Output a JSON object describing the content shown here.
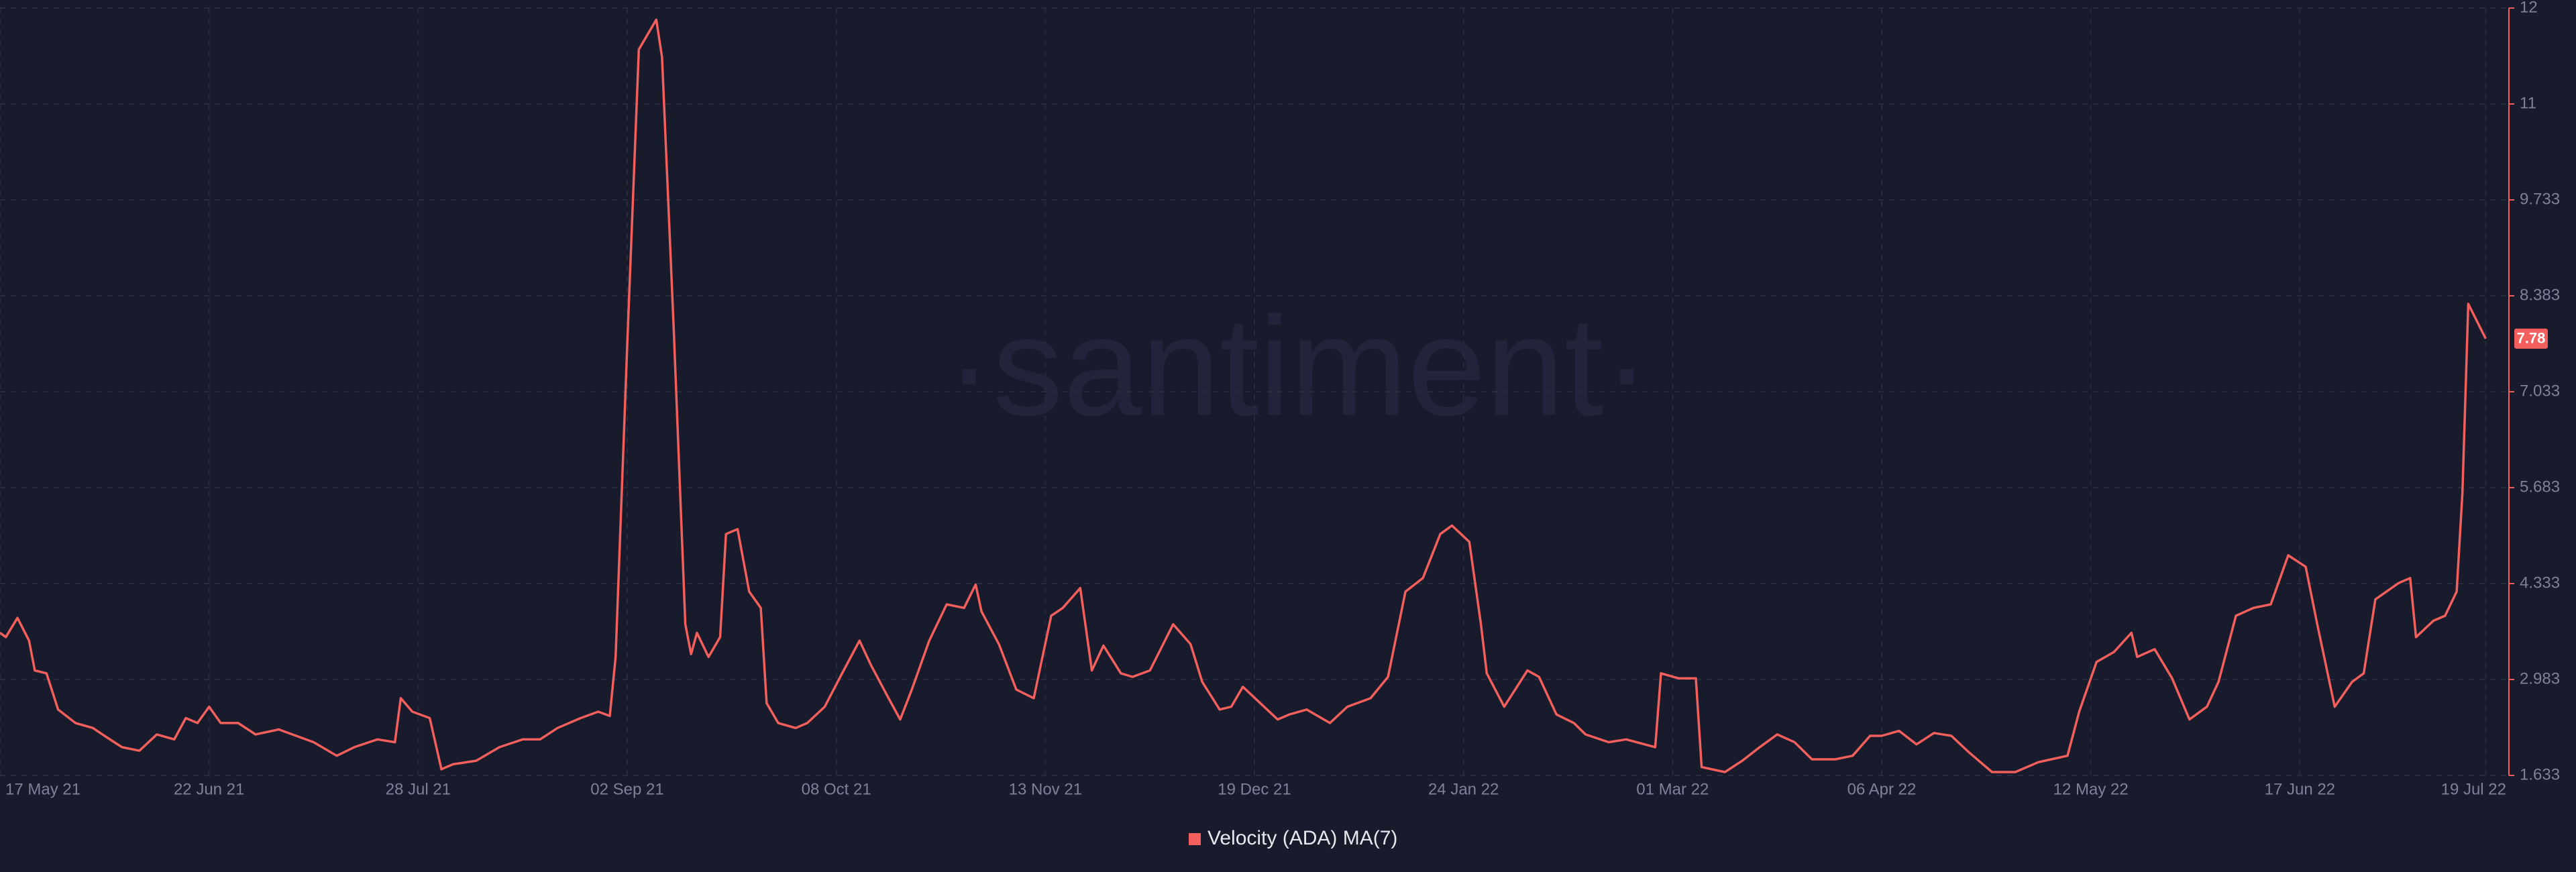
{
  "chart_data": {
    "type": "line",
    "watermark": "·santiment·",
    "x": [
      "2021-05-17",
      "2021-05-18",
      "2021-05-20",
      "2021-05-22",
      "2021-05-23",
      "2021-05-25",
      "2021-05-27",
      "2021-05-30",
      "2021-06-02",
      "2021-06-04",
      "2021-06-07",
      "2021-06-10",
      "2021-06-13",
      "2021-06-16",
      "2021-06-18",
      "2021-06-20",
      "2021-06-22",
      "2021-06-24",
      "2021-06-27",
      "2021-06-30",
      "2021-07-04",
      "2021-07-07",
      "2021-07-10",
      "2021-07-14",
      "2021-07-17",
      "2021-07-21",
      "2021-07-24",
      "2021-07-25",
      "2021-07-27",
      "2021-07-30",
      "2021-08-01",
      "2021-08-03",
      "2021-08-07",
      "2021-08-11",
      "2021-08-15",
      "2021-08-18",
      "2021-08-21",
      "2021-08-25",
      "2021-08-28",
      "2021-08-30",
      "2021-08-31",
      "2021-09-02",
      "2021-09-04",
      "2021-09-07",
      "2021-09-08",
      "2021-09-10",
      "2021-09-12",
      "2021-09-13",
      "2021-09-14",
      "2021-09-16",
      "2021-09-18",
      "2021-09-19",
      "2021-09-21",
      "2021-09-23",
      "2021-09-25",
      "2021-09-26",
      "2021-09-28",
      "2021-10-01",
      "2021-10-03",
      "2021-10-06",
      "2021-10-09",
      "2021-10-12",
      "2021-10-14",
      "2021-10-17",
      "2021-10-19",
      "2021-10-21",
      "2021-10-24",
      "2021-10-27",
      "2021-10-30",
      "2021-11-01",
      "2021-11-02",
      "2021-11-05",
      "2021-11-08",
      "2021-11-11",
      "2021-11-14",
      "2021-11-16",
      "2021-11-19",
      "2021-11-21",
      "2021-11-23",
      "2021-11-26",
      "2021-11-28",
      "2021-12-01",
      "2021-12-05",
      "2021-12-08",
      "2021-12-10",
      "2021-12-13",
      "2021-12-15",
      "2021-12-17",
      "2021-12-20",
      "2021-12-23",
      "2021-12-25",
      "2021-12-28",
      "2022-01-01",
      "2022-01-04",
      "2022-01-08",
      "2022-01-11",
      "2022-01-14",
      "2022-01-17",
      "2022-01-20",
      "2022-01-22",
      "2022-01-25",
      "2022-01-27",
      "2022-01-28",
      "2022-01-31",
      "2022-02-04",
      "2022-02-06",
      "2022-02-09",
      "2022-02-12",
      "2022-02-14",
      "2022-02-18",
      "2022-02-21",
      "2022-02-26",
      "2022-02-27",
      "2022-03-02",
      "2022-03-05",
      "2022-03-06",
      "2022-03-10",
      "2022-03-13",
      "2022-03-16",
      "2022-03-19",
      "2022-03-22",
      "2022-03-25",
      "2022-03-29",
      "2022-04-01",
      "2022-04-04",
      "2022-04-06",
      "2022-04-09",
      "2022-04-12",
      "2022-04-15",
      "2022-04-18",
      "2022-04-21",
      "2022-04-25",
      "2022-04-29",
      "2022-05-03",
      "2022-05-08",
      "2022-05-10",
      "2022-05-13",
      "2022-05-16",
      "2022-05-19",
      "2022-05-20",
      "2022-05-23",
      "2022-05-26",
      "2022-05-29",
      "2022-06-01",
      "2022-06-03",
      "2022-06-06",
      "2022-06-09",
      "2022-06-12",
      "2022-06-15",
      "2022-06-18",
      "2022-06-20",
      "2022-06-23",
      "2022-06-26",
      "2022-06-28",
      "2022-06-30",
      "2022-07-04",
      "2022-07-06",
      "2022-07-07",
      "2022-07-10",
      "2022-07-12",
      "2022-07-14",
      "2022-07-15",
      "2022-07-16",
      "2022-07-19"
    ],
    "series": [
      {
        "name": "Velocity (ADA) MA(7)",
        "color": "#f25f5c",
        "values": [
          3.64,
          3.58,
          3.85,
          3.53,
          3.11,
          3.07,
          2.56,
          2.37,
          2.3,
          2.19,
          2.03,
          1.98,
          2.21,
          2.14,
          2.44,
          2.37,
          2.6,
          2.37,
          2.37,
          2.21,
          2.28,
          2.19,
          2.1,
          1.91,
          2.03,
          2.14,
          2.1,
          2.72,
          2.53,
          2.44,
          1.72,
          1.79,
          1.84,
          2.03,
          2.14,
          2.14,
          2.3,
          2.44,
          2.53,
          2.47,
          3.3,
          7.69,
          11.85,
          12.27,
          11.74,
          7.92,
          3.76,
          3.34,
          3.64,
          3.3,
          3.58,
          5.03,
          5.1,
          4.22,
          3.99,
          2.65,
          2.37,
          2.3,
          2.37,
          2.6,
          3.07,
          3.53,
          3.18,
          2.72,
          2.42,
          2.84,
          3.53,
          4.04,
          3.99,
          4.32,
          3.94,
          3.48,
          2.84,
          2.72,
          3.88,
          3.99,
          4.27,
          3.11,
          3.46,
          3.07,
          3.02,
          3.11,
          3.76,
          3.48,
          2.95,
          2.56,
          2.6,
          2.88,
          2.65,
          2.42,
          2.49,
          2.56,
          2.37,
          2.6,
          2.72,
          3.02,
          4.22,
          4.41,
          5.03,
          5.15,
          4.92,
          3.76,
          3.07,
          2.6,
          3.11,
          3.02,
          2.49,
          2.37,
          2.21,
          2.1,
          2.14,
          2.03,
          3.07,
          3.0,
          3.0,
          1.75,
          1.68,
          1.84,
          2.03,
          2.21,
          2.1,
          1.86,
          1.86,
          1.91,
          2.19,
          2.19,
          2.26,
          2.07,
          2.23,
          2.19,
          1.96,
          1.68,
          1.68,
          1.82,
          1.91,
          2.53,
          3.23,
          3.37,
          3.64,
          3.3,
          3.41,
          3.0,
          2.42,
          2.6,
          2.95,
          3.88,
          3.99,
          4.04,
          4.73,
          4.57,
          3.76,
          2.6,
          2.95,
          3.07,
          4.11,
          4.34,
          4.41,
          3.58,
          3.81,
          3.88,
          4.22,
          5.61,
          8.27,
          7.78
        ]
      }
    ],
    "xlim": [
      "2021-05-17",
      "2022-07-23"
    ],
    "xticks": [
      {
        "value": "2021-05-17",
        "label": "17 May 21"
      },
      {
        "value": "2021-06-22",
        "label": "22 Jun 21"
      },
      {
        "value": "2021-07-28",
        "label": "28 Jul 21"
      },
      {
        "value": "2021-09-02",
        "label": "02 Sep 21"
      },
      {
        "value": "2021-10-08",
        "label": "08 Oct 21"
      },
      {
        "value": "2021-11-13",
        "label": "13 Nov 21"
      },
      {
        "value": "2021-12-19",
        "label": "19 Dec 21"
      },
      {
        "value": "2022-01-24",
        "label": "24 Jan 22"
      },
      {
        "value": "2022-03-01",
        "label": "01 Mar 22"
      },
      {
        "value": "2022-04-06",
        "label": "06 Apr 22"
      },
      {
        "value": "2022-05-12",
        "label": "12 May 22"
      },
      {
        "value": "2022-06-17",
        "label": "17 Jun 22"
      },
      {
        "value": "2022-07-19",
        "label": "19 Jul 22"
      }
    ],
    "ylim": [
      1.633,
      12.433
    ],
    "yticks": [
      1.633,
      2.983,
      4.333,
      5.683,
      7.033,
      8.383,
      9.733,
      {
        "value": 11.083,
        "label": "11"
      },
      {
        "value": 12.433,
        "label": "12"
      }
    ],
    "grid": true,
    "legend": "bottom"
  }
}
